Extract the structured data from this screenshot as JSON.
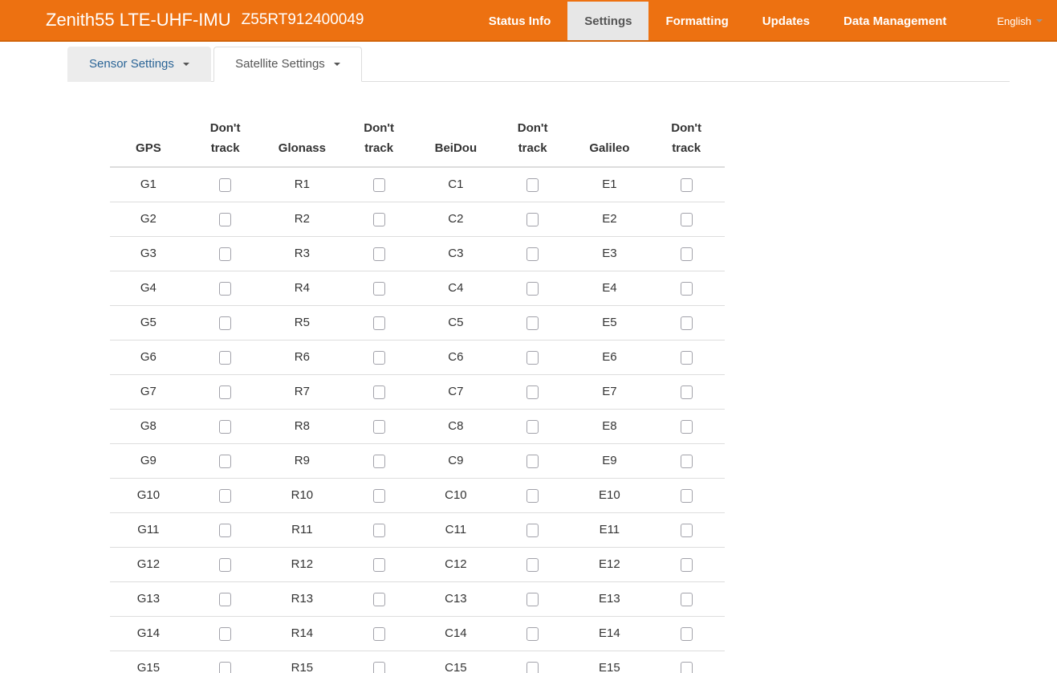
{
  "navbar": {
    "brand_title": "Zenith55 LTE-UHF-IMU",
    "brand_serial": "Z55RT912400049",
    "items": [
      {
        "label": "Status Info",
        "active": false
      },
      {
        "label": "Settings",
        "active": true
      },
      {
        "label": "Formatting",
        "active": false
      },
      {
        "label": "Updates",
        "active": false
      },
      {
        "label": "Data Management",
        "active": false
      }
    ],
    "language": {
      "label": "English"
    }
  },
  "tabs": [
    {
      "label": "Sensor Settings",
      "active": false
    },
    {
      "label": "Satellite Settings",
      "active": true
    }
  ],
  "satellite_table": {
    "headers": [
      "GPS",
      "Don't track",
      "Glonass",
      "Don't track",
      "BeiDou",
      "Don't track",
      "Galileo",
      "Don't track"
    ],
    "constellations": [
      "GPS",
      "Glonass",
      "BeiDou",
      "Galileo"
    ],
    "dont_track_label": "Don't track",
    "all_checkboxes_checked": false,
    "rows": [
      [
        "G1",
        "R1",
        "C1",
        "E1"
      ],
      [
        "G2",
        "R2",
        "C2",
        "E2"
      ],
      [
        "G3",
        "R3",
        "C3",
        "E3"
      ],
      [
        "G4",
        "R4",
        "C4",
        "E4"
      ],
      [
        "G5",
        "R5",
        "C5",
        "E5"
      ],
      [
        "G6",
        "R6",
        "C6",
        "E6"
      ],
      [
        "G7",
        "R7",
        "C7",
        "E7"
      ],
      [
        "G8",
        "R8",
        "C8",
        "E8"
      ],
      [
        "G9",
        "R9",
        "C9",
        "E9"
      ],
      [
        "G10",
        "R10",
        "C10",
        "E10"
      ],
      [
        "G11",
        "R11",
        "C11",
        "E11"
      ],
      [
        "G12",
        "R12",
        "C12",
        "E12"
      ],
      [
        "G13",
        "R13",
        "C13",
        "E13"
      ],
      [
        "G14",
        "R14",
        "C14",
        "E14"
      ],
      [
        "G15",
        "R15",
        "C15",
        "E15"
      ]
    ]
  },
  "colors": {
    "navbar_background": "#ED7111",
    "navbar_border": "#D2650B",
    "active_nav_item_background": "#E7E7E7",
    "inactive_tab_background": "#ECECEC",
    "tab_link_text": "#2A6496",
    "table_border": "#DDDDDD"
  }
}
